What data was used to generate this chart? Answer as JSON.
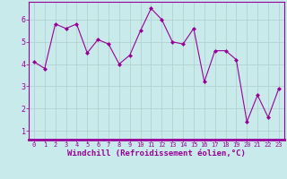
{
  "x": [
    0,
    1,
    2,
    3,
    4,
    5,
    6,
    7,
    8,
    9,
    10,
    11,
    12,
    13,
    14,
    15,
    16,
    17,
    18,
    19,
    20,
    21,
    22,
    23
  ],
  "y": [
    4.1,
    3.8,
    5.8,
    5.6,
    5.8,
    4.5,
    5.1,
    4.9,
    4.0,
    4.4,
    5.5,
    6.5,
    6.0,
    5.0,
    4.9,
    5.6,
    3.2,
    4.6,
    4.6,
    4.2,
    1.4,
    2.6,
    1.6,
    2.9
  ],
  "line_color": "#990099",
  "marker": "D",
  "marker_size": 2.0,
  "bg_color": "#c8eaea",
  "grid_color": "#b0cccc",
  "xlabel": "Windchill (Refroidissement éolien,°C)",
  "xlabel_color": "#990099",
  "tick_color": "#990099",
  "ylim": [
    0.6,
    6.8
  ],
  "xlim": [
    -0.5,
    23.5
  ],
  "yticks": [
    1,
    2,
    3,
    4,
    5,
    6
  ],
  "xticks": [
    0,
    1,
    2,
    3,
    4,
    5,
    6,
    7,
    8,
    9,
    10,
    11,
    12,
    13,
    14,
    15,
    16,
    17,
    18,
    19,
    20,
    21,
    22,
    23
  ],
  "xtick_fontsize": 5.0,
  "ytick_fontsize": 6.0,
  "xlabel_fontsize": 6.5,
  "line_width": 0.8
}
